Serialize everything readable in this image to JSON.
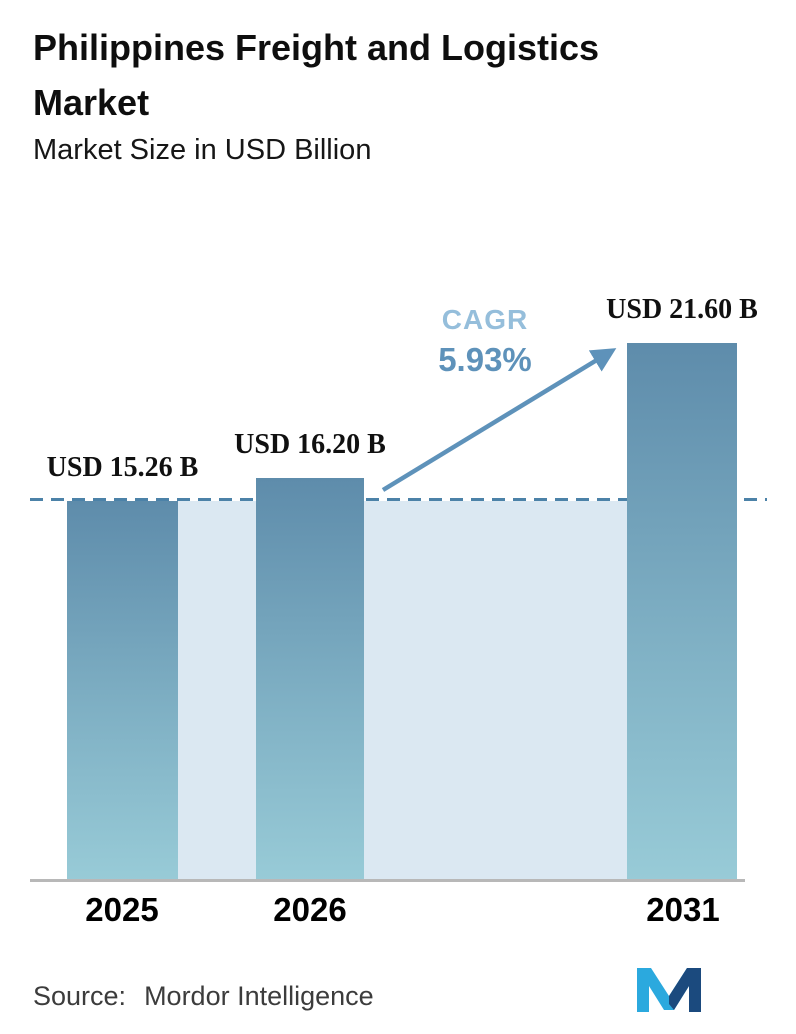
{
  "header": {
    "title_line1": "Philippines Freight and Logistics",
    "title_line2": "Market",
    "subtitle": "Market Size in USD Billion"
  },
  "chart_data": {
    "type": "bar",
    "title": "Philippines Freight and Logistics Market",
    "subtitle": "Market Size in USD Billion",
    "categories": [
      "2025",
      "2026",
      "2031"
    ],
    "values": [
      15.26,
      16.2,
      21.6
    ],
    "value_labels": [
      "USD 15.26 B",
      "USD 16.20 B",
      "USD 21.60 B"
    ],
    "ylim": [
      0,
      24
    ],
    "grid": "off",
    "legend": "none",
    "annotation": {
      "label": "CAGR",
      "value": "5.93%",
      "arrow": "from top of 2026 bar to top of 2031 bar"
    },
    "reference_line": {
      "style": "dashed",
      "at_value": 15.26
    },
    "colors": {
      "bar_gradient_top": "#5e8cab",
      "bar_gradient_bottom": "#98cbd7",
      "background_band": "#dbe8f2",
      "dashed_line": "#4c82a8",
      "arrow": "#5e92ba",
      "cagr_label": "#95bedb",
      "cagr_value": "#5e92ba",
      "axis": "#b8b8b8"
    }
  },
  "footer": {
    "source_label": "Source:",
    "source_value": "Mordor Intelligence",
    "logo": "mordor-intelligence-logo",
    "logo_colors": [
      "#2ba9de",
      "#1b4a7e"
    ]
  }
}
